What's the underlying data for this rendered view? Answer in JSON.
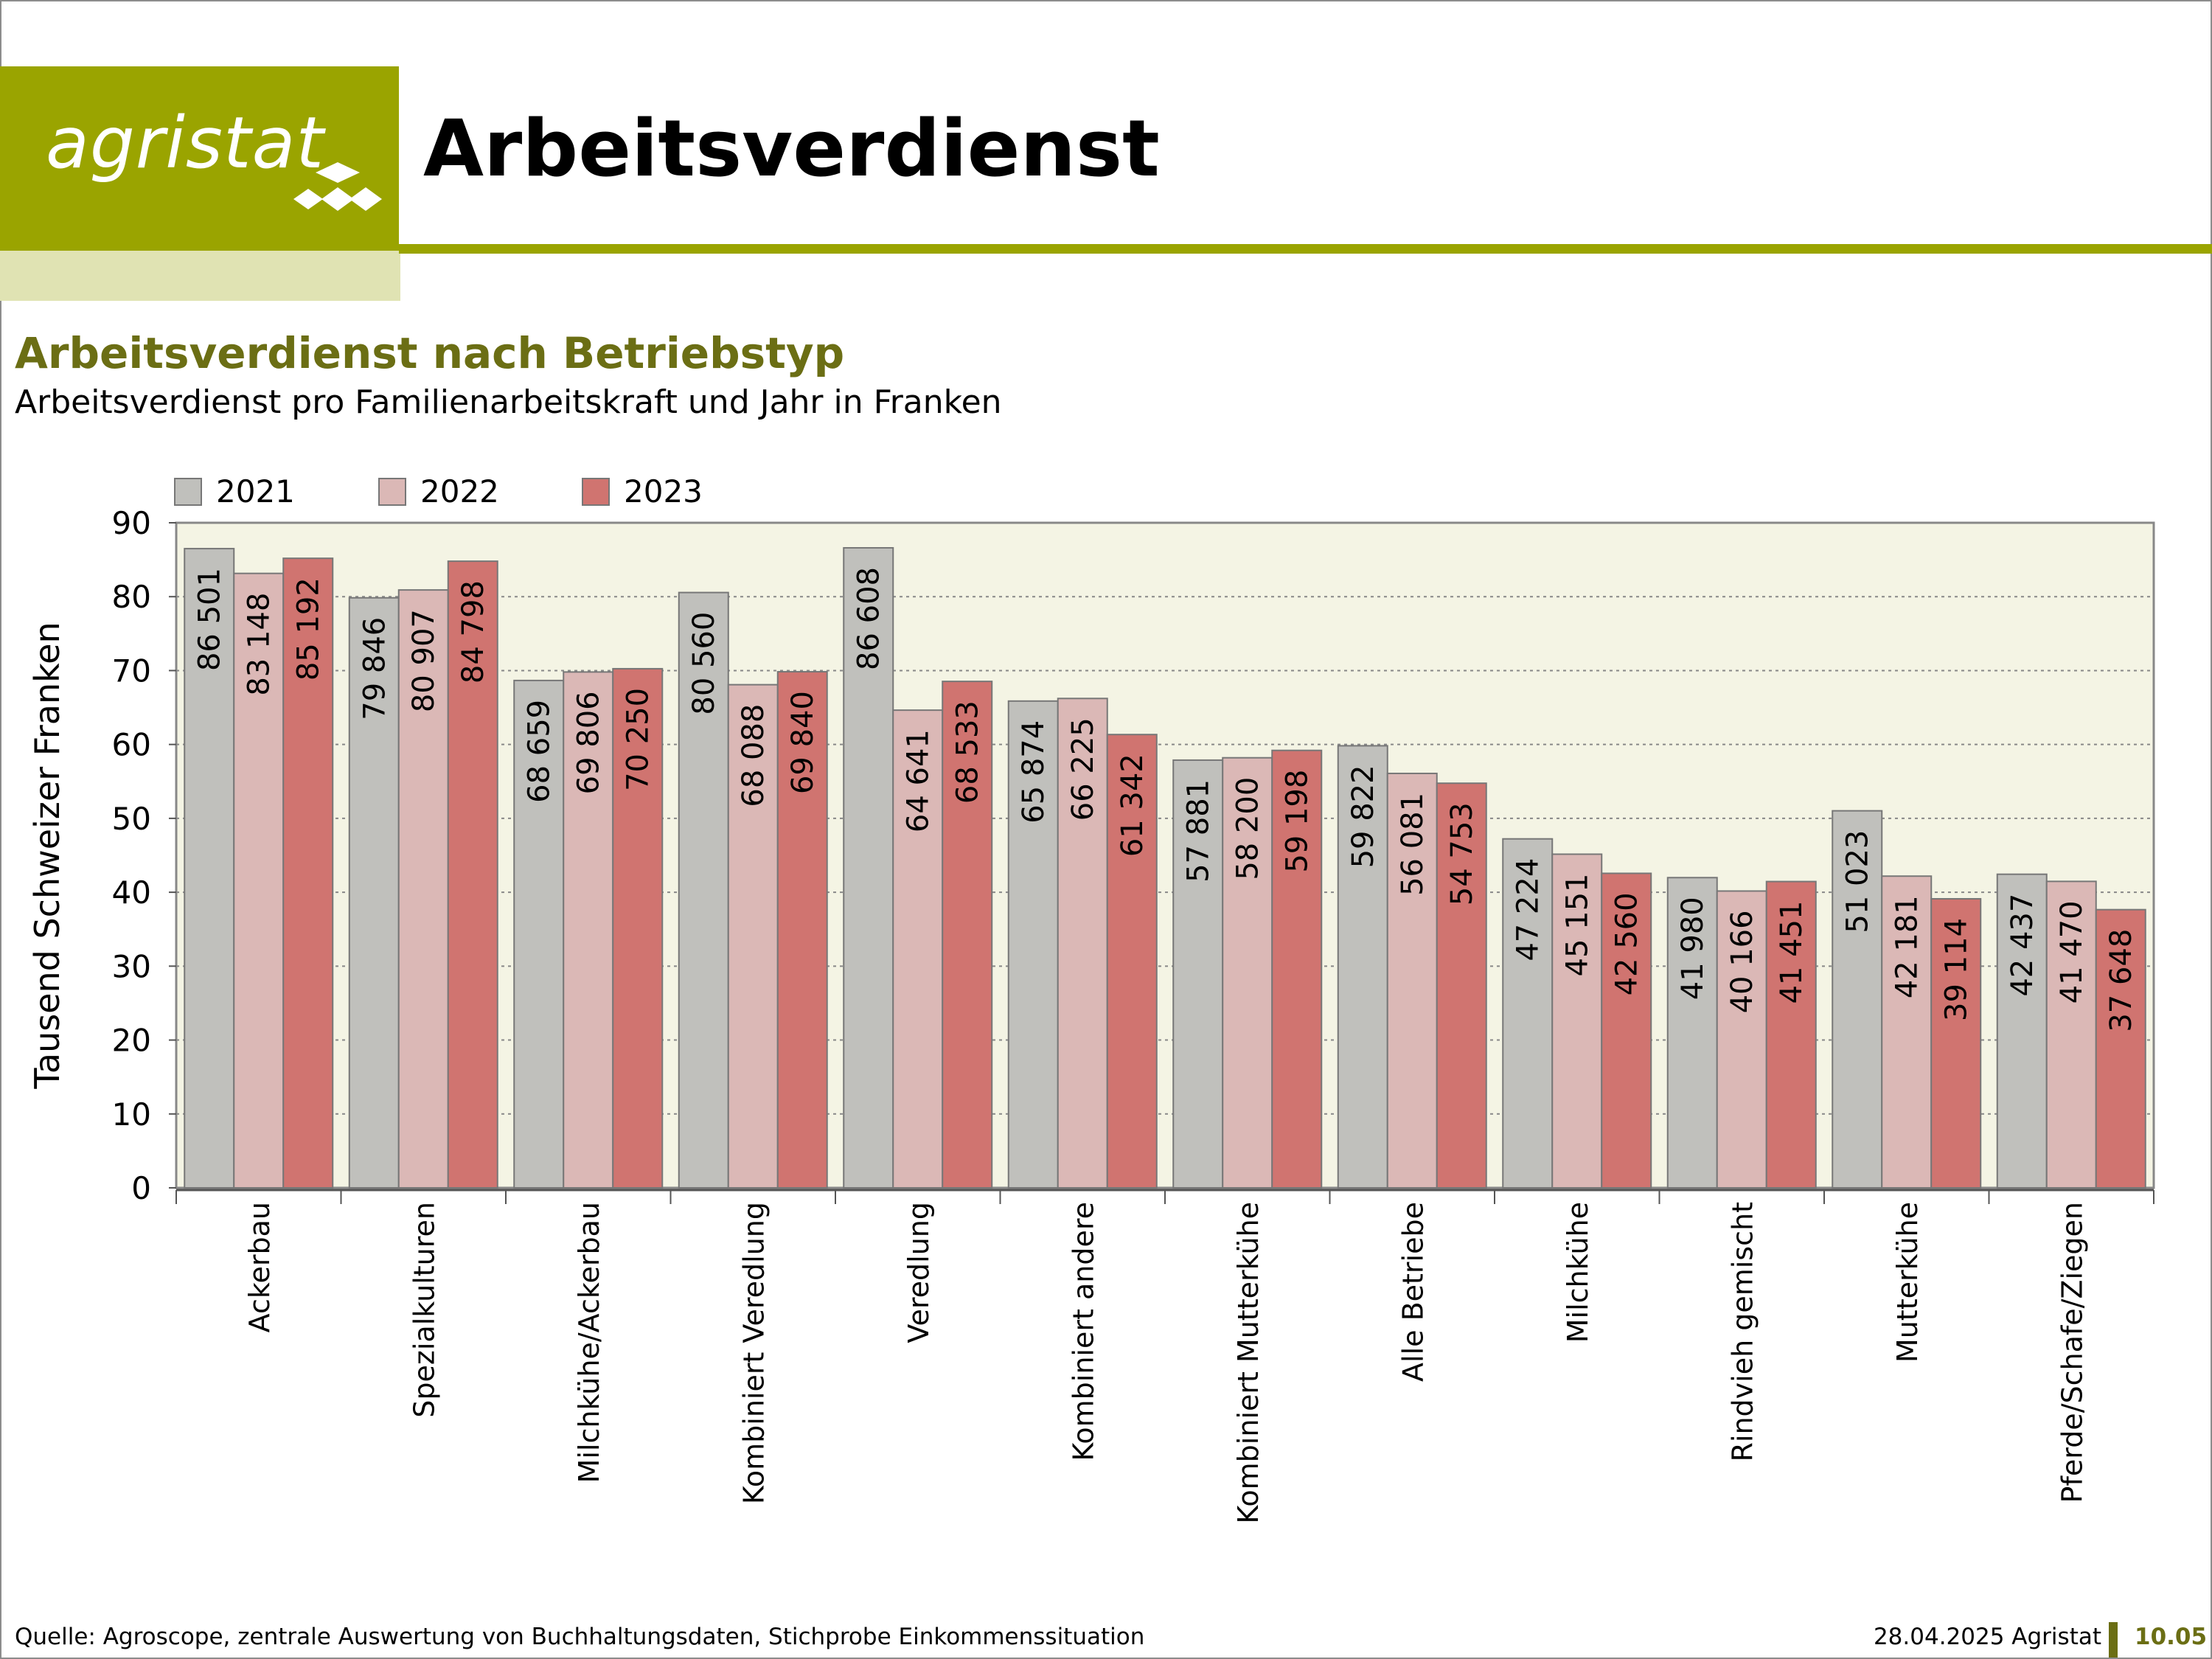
{
  "header": {
    "logo_text": "agristat",
    "title": "Arbeitsverdienst"
  },
  "section": {
    "title": "Arbeitsverdienst nach Betriebstyp",
    "description": "Arbeitsverdienst pro Familienarbeitskraft und Jahr in Franken"
  },
  "footer": {
    "source": "Quelle: Agroscope, zentrale Auswertung von Buchhaltungsdaten, Stichprobe Einkommenssituation",
    "date_org": "28.04.2025 Agristat",
    "page_number": "10.05"
  },
  "colors": {
    "brand": "#9aa400",
    "brand_dark": "#6b6e14",
    "plot_bg": "#f4f4e4",
    "series": [
      "#c0c0bc",
      "#dbb8b6",
      "#d07470"
    ]
  },
  "chart_data": {
    "type": "bar",
    "ylabel": "Tausend Schweizer Franken",
    "ylim": [
      0,
      90
    ],
    "yticks": [
      0,
      10,
      20,
      30,
      40,
      50,
      60,
      70,
      80,
      90
    ],
    "grid": true,
    "legend_position": "top-left",
    "categories": [
      "Ackerbau",
      "Spezialkulturen",
      "Milchkühe/Ackerbau",
      "Kombiniert Veredlung",
      "Veredlung",
      "Kombiniert andere",
      "Kombiniert Mutterkühe",
      "Alle Betriebe",
      "Milchkühe",
      "Rindvieh gemischt",
      "Mutterkühe",
      "Pferde/Schafe/Ziegen"
    ],
    "series": [
      {
        "name": "2021",
        "values": [
          86501,
          79846,
          68659,
          80560,
          86608,
          65874,
          57881,
          59822,
          47224,
          41980,
          51023,
          42437
        ],
        "labels": [
          "86 501",
          "79 846",
          "68 659",
          "80 560",
          "86 608",
          "65 874",
          "57 881",
          "59 822",
          "47 224",
          "41 980",
          "51 023",
          "42 437"
        ]
      },
      {
        "name": "2022",
        "values": [
          83148,
          80907,
          69806,
          68088,
          64641,
          66225,
          58200,
          56081,
          45151,
          40166,
          42181,
          41470
        ],
        "labels": [
          "83 148",
          "80 907",
          "69 806",
          "68 088",
          "64 641",
          "66 225",
          "58 200",
          "56 081",
          "45 151",
          "40 166",
          "42 181",
          "41 470"
        ]
      },
      {
        "name": "2023",
        "values": [
          85192,
          84798,
          70250,
          69840,
          68533,
          61342,
          59198,
          54753,
          42560,
          41451,
          39114,
          37648
        ],
        "labels": [
          "85 192",
          "84 798",
          "70 250",
          "69 840",
          "68 533",
          "61 342",
          "59 198",
          "54 753",
          "42 560",
          "41 451",
          "39 114",
          "37 648"
        ]
      }
    ]
  }
}
